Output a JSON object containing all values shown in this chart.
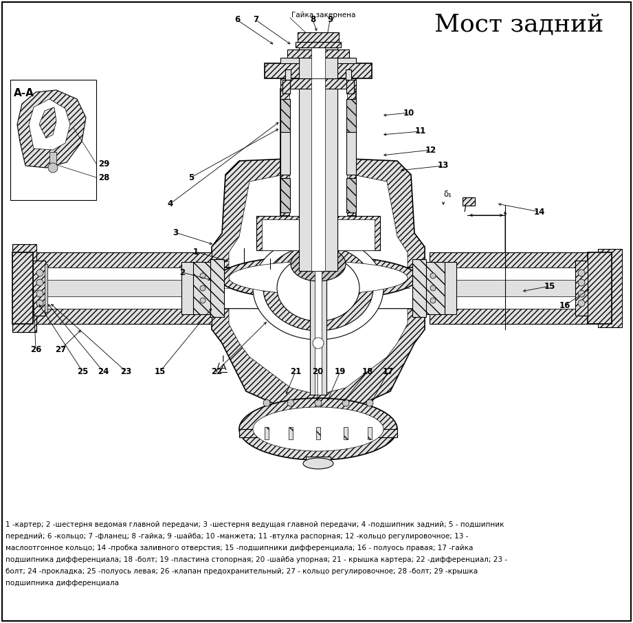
{
  "title": "Мост задний",
  "bg_color": "#ffffff",
  "text_color": "#000000",
  "top_label": "Гайка закернена",
  "section_label": "А-А",
  "description": "1 -картер; 2 -шестерня ведомая главной передачи; 3 -шестерня ведущая главной передачи; 4 -подшипник задний; 5 - подшипник\nпередний; 6 -кольцо; 7 -фланец; 8 -гайка; 9 -шайба; 10 -манжета; 11 -втулка распорная; 12 -кольцо регулировочное; 13 -\nмаслоотгонное кольцо; 14 -пробка заливного отверстия; 15 -подшипники дифференциала; 16 - полуось правая; 17 -гайка\nподшипника дифференциала; 18 -болт; 19 -пластина стопорная; 20 -шайба упорная; 21 - крышка картера; 22 -дифференциал; 23 -\nболт; 24 -прокладка; 25 -полуось левая; 26 -клапан предохранительный; 27 - кольцо регулировочное; 28 -болт; 29 -крышка\nподшипника дифференциала",
  "gray_fill": "#c8c8c8",
  "dark_gray": "#999999",
  "light_gray": "#e0e0e0",
  "hatch_gray": "#b0b0b0"
}
